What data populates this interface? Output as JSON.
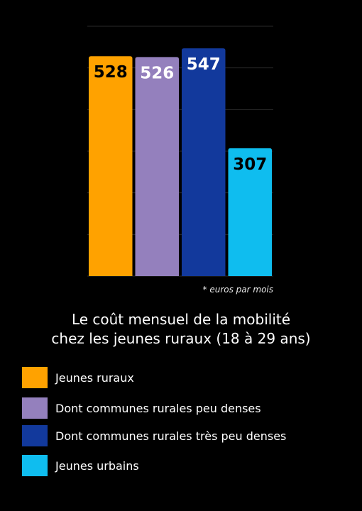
{
  "chart_data": {
    "type": "bar",
    "title": "Le coût mensuel de la mobilité chez les jeunes ruraux (18 à 29 ans)",
    "title_lines": [
      "Le coût mensuel de la mobilité",
      "chez les jeunes ruraux (18 à 29 ans)"
    ],
    "xlabel": "",
    "ylabel": "",
    "unit_note": "* euros par mois",
    "categories": [
      "Jeunes ruraux",
      "Dont communes rurales peu denses",
      "Dont communes rurales très peu denses",
      "Jeunes urbains"
    ],
    "values": [
      528,
      526,
      547,
      307
    ],
    "data_labels": [
      "528",
      "526",
      "547",
      "307"
    ],
    "colors": [
      "#FFA200",
      "#9480BD",
      "#12399C",
      "#0FBDEF"
    ],
    "label_colors": [
      "#000000",
      "#FFFFFF",
      "#FFFFFF",
      "#000000"
    ],
    "ylim": [
      0,
      600
    ],
    "grid": true,
    "legend_position": "bottom"
  }
}
